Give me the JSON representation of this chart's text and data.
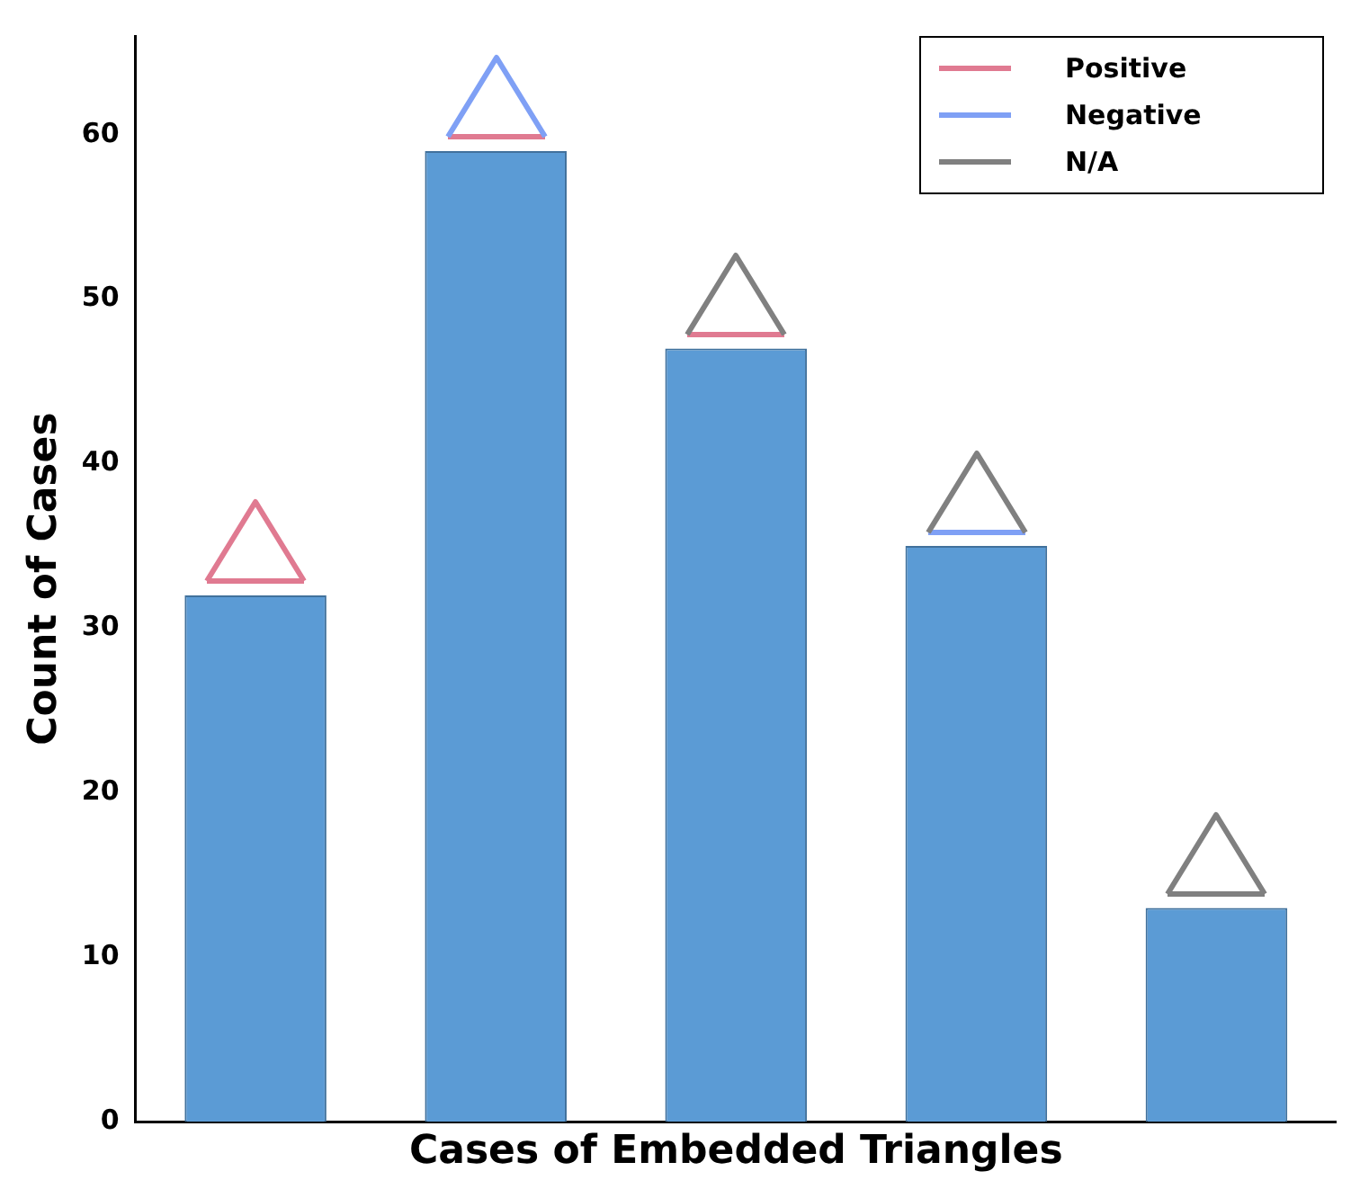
{
  "chart_data": {
    "type": "bar",
    "xlabel": "Cases of Embedded Triangles",
    "ylabel": "Count of Cases",
    "categories": [
      null,
      null,
      null,
      null,
      null
    ],
    "values": [
      32,
      59,
      47,
      35,
      13
    ],
    "color": "#5b9bd5",
    "ylim": [
      0,
      66
    ],
    "yticks": [
      0,
      10,
      20,
      30,
      40,
      50,
      60
    ],
    "grid": false,
    "annotations": [
      "Positive",
      "Negative",
      "N/A"
    ]
  }
}
